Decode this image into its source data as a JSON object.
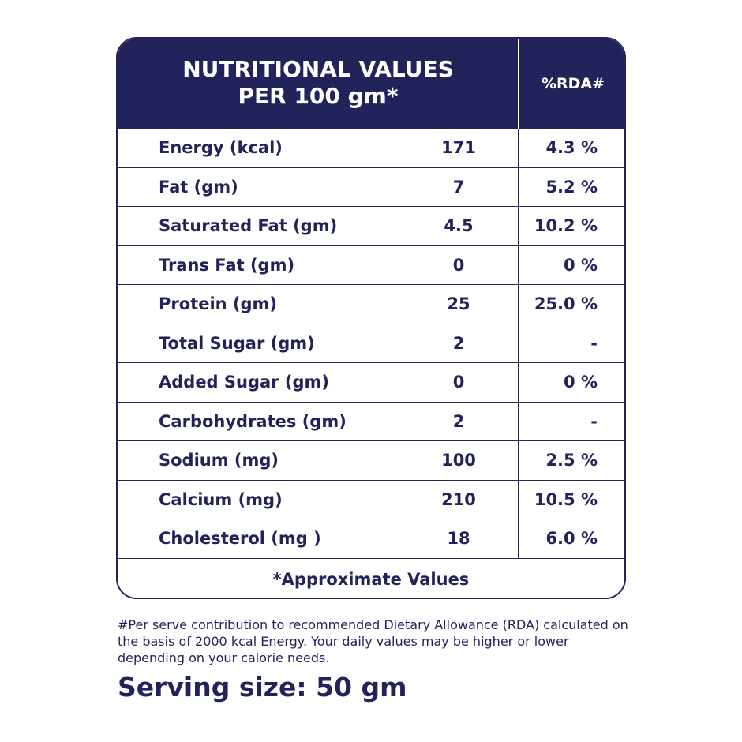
{
  "header": {
    "title_line1": "NUTRITIONAL VALUES",
    "title_line2": "PER 100 gm*",
    "rda_header": "%RDA#"
  },
  "rows": [
    {
      "name": "Energy (kcal)",
      "value": "171",
      "rda": "4.3 %"
    },
    {
      "name": "Fat (gm)",
      "value": "7",
      "rda": "5.2 %"
    },
    {
      "name": "Saturated Fat (gm)",
      "value": "4.5",
      "rda": "10.2 %"
    },
    {
      "name": "Trans Fat (gm)",
      "value": "0",
      "rda": "0 %"
    },
    {
      "name": "Protein (gm)",
      "value": "25",
      "rda": "25.0 %"
    },
    {
      "name": "Total Sugar (gm)",
      "value": "2",
      "rda": "-"
    },
    {
      "name": "Added Sugar (gm)",
      "value": "0",
      "rda": "0 %"
    },
    {
      "name": "Carbohydrates (gm)",
      "value": "2",
      "rda": "-"
    },
    {
      "name": "Sodium (mg)",
      "value": "100",
      "rda": "2.5 %"
    },
    {
      "name": "Calcium (mg)",
      "value": "210",
      "rda": "10.5 %"
    },
    {
      "name": "Cholesterol (mg )",
      "value": "18",
      "rda": "6.0 %"
    }
  ],
  "footer": {
    "approx": "*Approximate Values"
  },
  "note": "#Per serve contribution to recommended Dietary Allowance (RDA) calculated on the basis of 2000 kcal Energy. Your daily values may be higher or lower depending on your calorie needs.",
  "serving": "Serving size: 50 gm",
  "colors": {
    "primary": "#23235b",
    "background": "#ffffff"
  }
}
